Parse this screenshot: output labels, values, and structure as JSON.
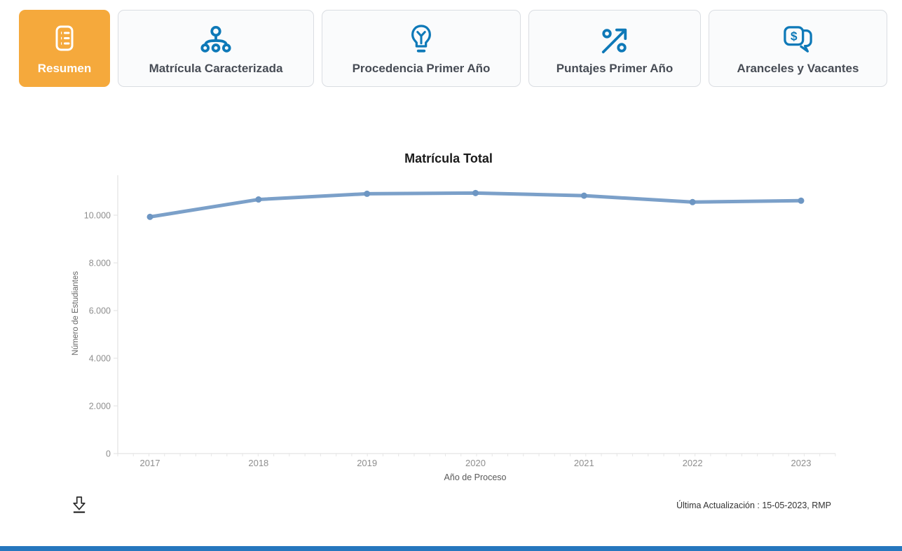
{
  "tabs": [
    {
      "label": "Resumen",
      "icon": "list-icon",
      "active": true
    },
    {
      "label": "Matrícula Caracterizada",
      "icon": "hierarchy-icon",
      "active": false
    },
    {
      "label": "Procedencia Primer Año",
      "icon": "lightbulb-icon",
      "active": false
    },
    {
      "label": "Puntajes Primer Año",
      "icon": "percent-trend-icon",
      "active": false
    },
    {
      "label": "Aranceles y Vacantes",
      "icon": "money-chat-icon",
      "active": false
    }
  ],
  "colors": {
    "active_tab": "#f5a93c",
    "icon_blue": "#0e79b8",
    "line": "#7ba0c9",
    "marker": "#6d96c3",
    "axis": "#dcdcdc",
    "axis_label": "#8e8e8e",
    "bottom_bar": "#2577be"
  },
  "chart_data": {
    "type": "line",
    "title": "Matrícula Total",
    "xlabel": "Año de Proceso",
    "ylabel": "Número de Estudiantes",
    "categories": [
      "2017",
      "2018",
      "2019",
      "2020",
      "2021",
      "2022",
      "2023"
    ],
    "series": [
      {
        "name": "Matrícula Total",
        "values": [
          9930,
          10660,
          10900,
          10930,
          10820,
          10550,
          10610
        ]
      }
    ],
    "ylim": [
      0,
      11600
    ],
    "yticks": [
      0,
      2000,
      4000,
      6000,
      8000,
      10000
    ],
    "ytick_labels": [
      "0",
      "2.000",
      "4.000",
      "6.000",
      "8.000",
      "10.000"
    ],
    "grid": false,
    "legend": "none"
  },
  "footer": {
    "last_update": "Última Actualización : 15-05-2023, RMP"
  }
}
